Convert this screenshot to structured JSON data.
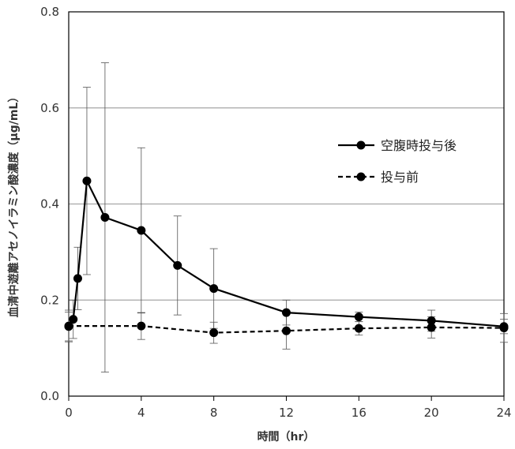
{
  "chart_data": {
    "type": "line",
    "xlabel": "時間（hr）",
    "ylabel": "血清中遊離アセノイラミン酸濃度（μg/mL）",
    "xlim": [
      0,
      24
    ],
    "ylim": [
      0,
      0.8
    ],
    "x_ticks": [
      0,
      4,
      8,
      12,
      16,
      20,
      24
    ],
    "y_ticks": [
      0.0,
      0.2,
      0.4,
      0.6,
      0.8
    ],
    "x_tick_labels": [
      "0",
      "4",
      "8",
      "12",
      "16",
      "20",
      "24"
    ],
    "y_tick_labels": [
      "0.0",
      "0.2",
      "0.4",
      "0.6",
      "0.8"
    ],
    "grid": "horizontal",
    "legend_position": "right",
    "series": [
      {
        "name": "空腹時投与後",
        "line_style": "solid",
        "color": "#000000",
        "x": [
          0,
          0.25,
          0.5,
          1,
          2,
          4,
          6,
          8,
          12,
          16,
          20,
          24
        ],
        "y": [
          0.145,
          0.16,
          0.245,
          0.448,
          0.372,
          0.345,
          0.272,
          0.224,
          0.174,
          0.165,
          0.157,
          0.145
        ],
        "error": [
          0.03,
          0.04,
          0.065,
          0.195,
          0.322,
          0.172,
          0.103,
          0.083,
          0.026,
          0.01,
          0.022,
          0.015
        ]
      },
      {
        "name": "投与前",
        "line_style": "dashed",
        "color": "#000000",
        "x": [
          0,
          4,
          8,
          12,
          16,
          20,
          24
        ],
        "y": [
          0.146,
          0.146,
          0.132,
          0.136,
          0.141,
          0.143,
          0.142
        ],
        "error": [
          0.033,
          0.028,
          0.022,
          0.038,
          0.014,
          0.022,
          0.03
        ]
      }
    ]
  }
}
